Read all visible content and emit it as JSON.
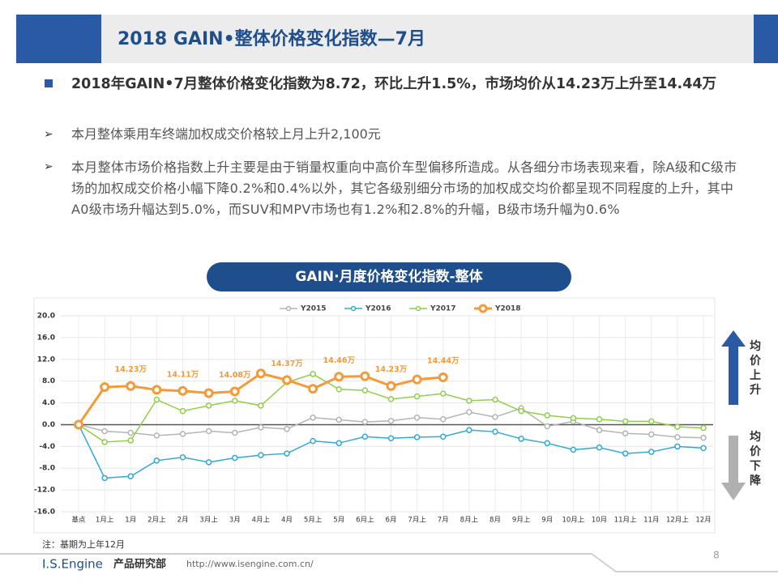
{
  "header": {
    "title": "2018 GAIN•整体价格变化指数—7月"
  },
  "bullets": {
    "main": "2018年GAIN•7月整体价格变化指数为8.72，环比上升1.5%，市场均价从14.23万上升至14.44万",
    "sub": [
      "本月整体乘用车终端加权成交价格较上月上升2,100元",
      "本月整体市场价格指数上升主要是由于销量权重向中高价车型偏移所造成。从各细分市场表现来看，除A级和C级市场的加权成交价格小幅下降0.2%和0.4%以外，其它各级别细分市场的加权成交均价都呈现不同程度的上升，其中A0级市场升幅达到5.0%，而SUV和MPV市场也有1.2%和2.8%的升幅，B级市场升幅为0.6%"
    ]
  },
  "chart_data": {
    "type": "line",
    "title": "GAIN·月度价格变化指数-整体",
    "categories": [
      "基点",
      "1月上",
      "1月",
      "2月上",
      "2月",
      "3月上",
      "3月",
      "4月上",
      "4月",
      "5月上",
      "5月",
      "6月上",
      "6月",
      "7月上",
      "7月",
      "8月上",
      "8月",
      "9月上",
      "9月",
      "10月上",
      "10月",
      "11月上",
      "11月",
      "12月上",
      "12月"
    ],
    "series": [
      {
        "name": "Y2015",
        "color": "#b4b4b4",
        "values": [
          0,
          -1.2,
          -1.5,
          -2.0,
          -1.7,
          -1.2,
          -1.5,
          -0.5,
          -0.8,
          1.3,
          0.9,
          0.5,
          0.7,
          1.3,
          1.0,
          2.3,
          1.4,
          3.0,
          -0.3,
          0.6,
          -1.0,
          -1.6,
          -1.8,
          -2.3,
          -2.4
        ]
      },
      {
        "name": "Y2016",
        "color": "#33a9d6",
        "values": [
          0,
          -9.8,
          -9.5,
          -6.6,
          -6.0,
          -6.9,
          -6.1,
          -5.6,
          -5.3,
          -3.0,
          -3.4,
          -2.2,
          -2.5,
          -2.3,
          -2.2,
          -1.0,
          -1.3,
          -2.6,
          -3.4,
          -4.6,
          -4.2,
          -5.3,
          -5.0,
          -4.0,
          -4.3
        ]
      },
      {
        "name": "Y2017",
        "color": "#8fcf4a",
        "values": [
          0,
          -3.2,
          -2.9,
          4.6,
          2.5,
          3.5,
          4.4,
          3.5,
          7.8,
          9.3,
          6.5,
          6.3,
          4.7,
          5.2,
          5.7,
          4.4,
          4.6,
          2.5,
          1.7,
          1.2,
          1.0,
          0.6,
          0.6,
          -0.4,
          -0.6
        ]
      },
      {
        "name": "Y2018",
        "color": "#f39a3a",
        "values": [
          0,
          6.9,
          7.1,
          6.4,
          6.2,
          5.8,
          6.1,
          9.4,
          8.2,
          6.6,
          8.8,
          8.9,
          7.1,
          8.3,
          8.7,
          null,
          null,
          null,
          null,
          null,
          null,
          null,
          null,
          null,
          null
        ]
      }
    ],
    "ylim": [
      -16,
      20
    ],
    "yticks": [
      {
        "value": -16,
        "label": "-16.0"
      },
      {
        "value": -12,
        "label": "-12.0"
      },
      {
        "value": -8,
        "label": "-8.0"
      },
      {
        "value": -4,
        "label": "-4.0"
      },
      {
        "value": 0,
        "label": "0.0"
      },
      {
        "value": 4,
        "label": "4.0"
      },
      {
        "value": 8,
        "label": "8.0"
      },
      {
        "value": 12,
        "label": "12.0"
      },
      {
        "value": 16,
        "label": "16.0"
      },
      {
        "value": 20,
        "label": "20.0"
      }
    ],
    "grid": true,
    "legend": "top",
    "annotations": [
      {
        "category": "1月",
        "text": "14.23万"
      },
      {
        "category": "2月",
        "text": "14.11万"
      },
      {
        "category": "3月",
        "text": "14.08万"
      },
      {
        "category": "4月",
        "text": "14.37万"
      },
      {
        "category": "5月",
        "text": "14.46万"
      },
      {
        "category": "6月",
        "text": "14.23万"
      },
      {
        "category": "7月",
        "text": "14.44万"
      }
    ],
    "side_labels": {
      "up": "均价上升",
      "down": "均价下降"
    }
  },
  "footer": {
    "note": "注：基期为上年12月",
    "brand": "I.S.Engine",
    "dept": "产品研究部",
    "url": "http://www.isengine.com.cn/",
    "page": "8"
  }
}
